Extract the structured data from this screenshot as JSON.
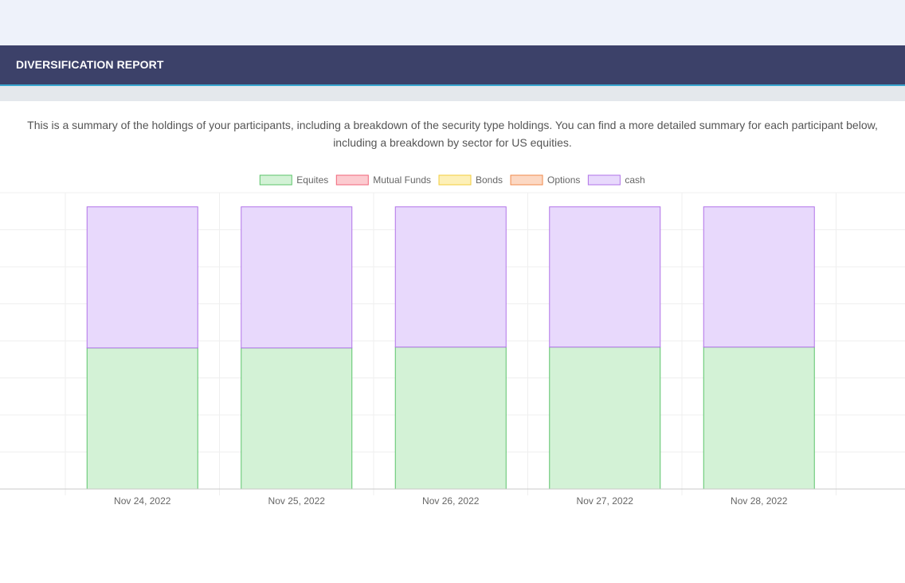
{
  "header": {
    "title": "DIVERSIFICATION REPORT"
  },
  "description": "This is a summary of the holdings of your participants, including a breakdown of the security type holdings. You can find a more detailed summary for each participant below, including a breakdown by sector for US equities.",
  "colors": {
    "header_bg": "#3c4169",
    "header_accent": "#39a6cf"
  },
  "chart_data": {
    "type": "bar",
    "stacked": true,
    "categories": [
      "Nov 24, 2022",
      "Nov 25, 2022",
      "Nov 26, 2022",
      "Nov 27, 2022",
      "Nov 28, 2022"
    ],
    "series": [
      {
        "name": "Equites",
        "values": [
          50,
          50,
          50.3,
          50.3,
          50.3
        ],
        "fill": "#d3f2d6",
        "stroke": "#5cc46b"
      },
      {
        "name": "Mutual Funds",
        "values": [
          0,
          0,
          0,
          0,
          0
        ],
        "fill": "#fccbd0",
        "stroke": "#f0667a"
      },
      {
        "name": "Bonds",
        "values": [
          0,
          0,
          0,
          0,
          0
        ],
        "fill": "#fdf0b8",
        "stroke": "#f2cc3c"
      },
      {
        "name": "Options",
        "values": [
          0,
          0,
          0,
          0,
          0
        ],
        "fill": "#fcd8c3",
        "stroke": "#f08a4b"
      },
      {
        "name": "cash",
        "values": [
          50,
          50,
          49.7,
          49.7,
          49.7
        ],
        "fill": "#e8d9fc",
        "stroke": "#b173e8"
      }
    ],
    "ylim": [
      0,
      105
    ],
    "grid": true,
    "legend": "top-center",
    "xlabel": "",
    "ylabel": ""
  }
}
